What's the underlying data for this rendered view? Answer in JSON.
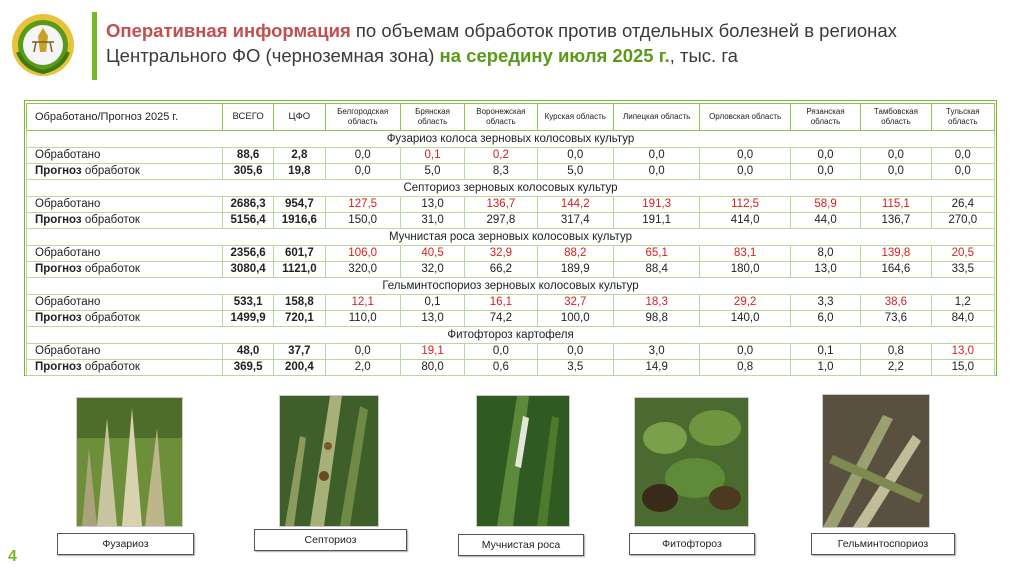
{
  "title": {
    "part1": "Оперативная информация",
    "part2": " по объемам обработок против отдельных болезней в регионах Центрального ФО (черноземная зона) ",
    "part3": "на середину июля 2025 г.",
    "part4": ", тыс. га"
  },
  "table": {
    "headers": [
      "Обработано/Прогноз 2025 г.",
      "ВСЕГО",
      "ЦФО",
      "Белгородская область",
      "Брянская область",
      "Воронежская область",
      "Курская область",
      "Липецкая область",
      "Орловская область",
      "Рязанская область",
      "Тамбовская область",
      "Тульская область"
    ],
    "sections": [
      {
        "name": "Фузариоз колоса зерновых колосовых культур",
        "rows": [
          {
            "label_bold": "",
            "label": "Обработано",
            "values": [
              "88,6",
              "2,8",
              "0,0",
              "0,1",
              "0,2",
              "0,0",
              "0,0",
              "0,0",
              "0,0",
              "0,0",
              "0,0"
            ],
            "red": [
              3,
              4
            ]
          },
          {
            "label_bold": "Прогноз",
            "label": " обработок",
            "values": [
              "305,6",
              "19,8",
              "0,0",
              "5,0",
              "8,3",
              "5,0",
              "0,0",
              "0,0",
              "0,0",
              "0,0",
              "0,0"
            ],
            "red": []
          }
        ]
      },
      {
        "name": "Септориоз зерновых колосовых культур",
        "rows": [
          {
            "label_bold": "",
            "label": "Обработано",
            "values": [
              "2686,3",
              "954,7",
              "127,5",
              "13,0",
              "136,7",
              "144,2",
              "191,3",
              "112,5",
              "58,9",
              "115,1",
              "26,4"
            ],
            "red": [
              2,
              4,
              5,
              6,
              7,
              8,
              9
            ]
          },
          {
            "label_bold": "Прогноз",
            "label": " обработок",
            "values": [
              "5156,4",
              "1916,6",
              "150,0",
              "31,0",
              "297,8",
              "317,4",
              "191,1",
              "414,0",
              "44,0",
              "136,7",
              "270,0"
            ],
            "red": []
          }
        ]
      },
      {
        "name": "Мучнистая роса зерновых колосовых культур",
        "rows": [
          {
            "label_bold": "",
            "label": "Обработано",
            "values": [
              "2356,6",
              "601,7",
              "106,0",
              "40,5",
              "32,9",
              "88,2",
              "65,1",
              "83,1",
              "8,0",
              "139,8",
              "20,5"
            ],
            "red": [
              2,
              3,
              4,
              5,
              6,
              7,
              9,
              10
            ]
          },
          {
            "label_bold": "Прогноз",
            "label": " обработок",
            "values": [
              "3080,4",
              "1121,0",
              "320,0",
              "32,0",
              "66,2",
              "189,9",
              "88,4",
              "180,0",
              "13,0",
              "164,6",
              "33,5"
            ],
            "red": []
          }
        ]
      },
      {
        "name": "Гельминтоспориоз зерновых колосовых культур",
        "rows": [
          {
            "label_bold": "",
            "label": "Обработано",
            "values": [
              "533,1",
              "158,8",
              "12,1",
              "0,1",
              "16,1",
              "32,7",
              "18,3",
              "29,2",
              "3,3",
              "38,6",
              "1,2"
            ],
            "red": [
              2,
              4,
              5,
              6,
              7,
              9
            ]
          },
          {
            "label_bold": "Прогноз",
            "label": " обработок",
            "values": [
              "1499,9",
              "720,1",
              "110,0",
              "13,0",
              "74,2",
              "100,0",
              "98,8",
              "140,0",
              "6,0",
              "73,6",
              "84,0"
            ],
            "red": []
          }
        ]
      },
      {
        "name": "Фитофтороз картофеля",
        "rows": [
          {
            "label_bold": "",
            "label": "Обработано",
            "values": [
              "48,0",
              "37,7",
              "0,0",
              "19,1",
              "0,0",
              "0,0",
              "3,0",
              "0,0",
              "0,1",
              "0,8",
              "13,0"
            ],
            "red": [
              3,
              10
            ]
          },
          {
            "label_bold": "Прогноз",
            "label": " обработок",
            "values": [
              "369,5",
              "200,4",
              "2,0",
              "80,0",
              "0,6",
              "3,5",
              "14,9",
              "0,8",
              "1,0",
              "2,2",
              "15,0"
            ],
            "red": []
          }
        ]
      }
    ]
  },
  "captions": {
    "fusarium": "Фузариоз",
    "septoria": "Септориоз",
    "mildew": "Мучнистая роса",
    "phytophthora": "Фитофтороз",
    "helminth": "Гельминтоспориоз"
  },
  "page_number": "4",
  "colors": {
    "accent": "#76b82a",
    "title_red": "#c0504d",
    "title_green": "#5a9a1a",
    "value_red": "#d62020"
  },
  "icons": [
    "ministry-emblem-icon"
  ]
}
